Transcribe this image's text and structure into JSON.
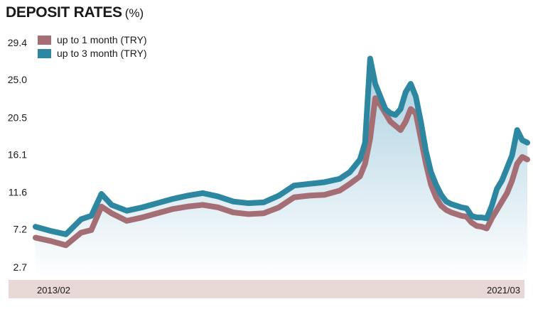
{
  "chart_data": {
    "type": "area",
    "title": "DEPOSIT RATES",
    "title_unit": "(%)",
    "ylim": [
      2.7,
      29.4
    ],
    "yticks": [
      "29.4",
      "25.0",
      "20.5",
      "16.1",
      "11.6",
      "7.2",
      "2.7"
    ],
    "ytick_values": [
      29.4,
      25.0,
      20.5,
      16.1,
      11.6,
      7.2,
      2.7
    ],
    "xtick_labels": [
      "2013/02",
      "2021/03"
    ],
    "x_range": [
      "2013/02",
      "2021/03"
    ],
    "legend_position": "top-left",
    "colors": {
      "series1": "#a56e74",
      "series2": "#2e87a0",
      "area_top": "#a9cfe0",
      "area_bottom": "#ffffff",
      "axis_band": "#e8d8d6"
    },
    "x": [
      "2013/02",
      "2013/05",
      "2013/08",
      "2013/11",
      "2014/01",
      "2014/03",
      "2014/05",
      "2014/08",
      "2014/11",
      "2015/02",
      "2015/05",
      "2015/08",
      "2015/11",
      "2016/02",
      "2016/05",
      "2016/08",
      "2016/11",
      "2017/02",
      "2017/05",
      "2017/08",
      "2017/11",
      "2018/02",
      "2018/04",
      "2018/06",
      "2018/07",
      "2018/08",
      "2018/09",
      "2018/10",
      "2018/11",
      "2018/12",
      "2019/01",
      "2019/02",
      "2019/03",
      "2019/04",
      "2019/05",
      "2019/06",
      "2019/07",
      "2019/08",
      "2019/09",
      "2019/10",
      "2019/11",
      "2019/12",
      "2020/01",
      "2020/02",
      "2020/03",
      "2020/04",
      "2020/05",
      "2020/06",
      "2020/07",
      "2020/08",
      "2020/09",
      "2020/10",
      "2020/11",
      "2020/12",
      "2021/01",
      "2021/02",
      "2021/03"
    ],
    "series": [
      {
        "name": "up to 1 month (TRY)",
        "values": [
          6.2,
          5.8,
          5.3,
          6.8,
          7.1,
          9.9,
          9.1,
          8.2,
          8.6,
          9.1,
          9.6,
          9.9,
          10.1,
          9.8,
          9.2,
          9.0,
          9.1,
          9.8,
          11.0,
          11.2,
          11.3,
          11.8,
          12.6,
          13.5,
          15.0,
          18.0,
          22.8,
          22.0,
          21.0,
          20.0,
          19.5,
          19.0,
          20.0,
          21.5,
          21.0,
          18.0,
          15.0,
          12.5,
          11.0,
          10.0,
          9.5,
          9.2,
          9.0,
          8.8,
          8.7,
          8.0,
          7.6,
          7.5,
          7.3,
          8.5,
          9.5,
          10.5,
          11.5,
          13.0,
          15.0,
          15.8,
          15.5
        ]
      },
      {
        "name": "up to 3 month (TRY)",
        "values": [
          7.5,
          7.0,
          6.6,
          8.4,
          8.8,
          11.4,
          10.1,
          9.4,
          9.8,
          10.3,
          10.8,
          11.2,
          11.5,
          11.1,
          10.5,
          10.3,
          10.4,
          11.2,
          12.4,
          12.6,
          12.8,
          13.2,
          14.0,
          15.5,
          17.5,
          27.5,
          24.5,
          23.0,
          21.5,
          21.0,
          20.8,
          21.5,
          23.5,
          24.5,
          23.0,
          20.0,
          16.5,
          14.0,
          12.5,
          11.3,
          10.5,
          10.2,
          10.0,
          9.8,
          9.7,
          8.8,
          8.6,
          8.6,
          8.5,
          10.0,
          12.0,
          13.0,
          14.5,
          16.0,
          19.0,
          17.8,
          17.5
        ]
      }
    ]
  }
}
